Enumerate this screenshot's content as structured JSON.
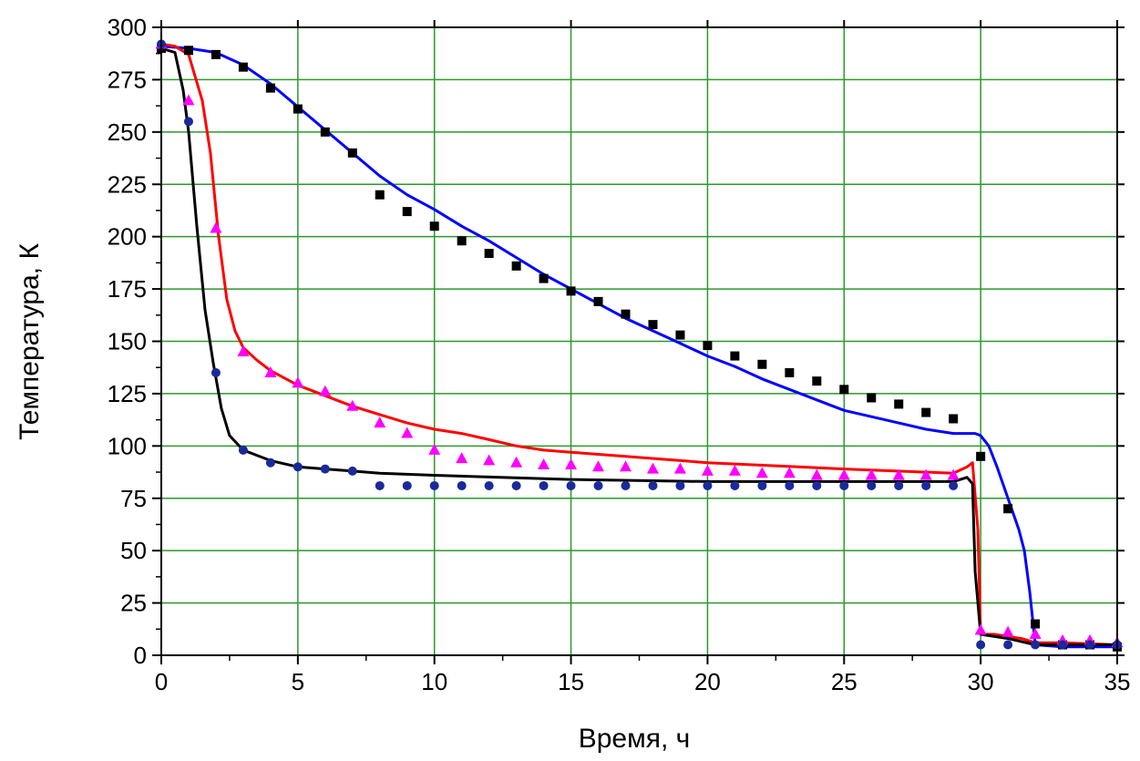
{
  "chart_data": {
    "type": "line",
    "title": "",
    "xlabel": "Время, ч",
    "ylabel": "Температура, К",
    "xlim": [
      0,
      35
    ],
    "ylim": [
      0,
      300
    ],
    "xticks": [
      0,
      5,
      10,
      15,
      20,
      25,
      30,
      35
    ],
    "yticks": [
      0,
      25,
      50,
      75,
      100,
      125,
      150,
      175,
      200,
      225,
      250,
      275,
      300
    ],
    "grid": true,
    "grid_color": "#2a9a2a",
    "legend": "none",
    "series": [
      {
        "kind": "line",
        "color": "#0000ff",
        "points": [
          [
            0,
            291
          ],
          [
            1,
            290
          ],
          [
            2,
            288
          ],
          [
            3,
            282
          ],
          [
            4,
            273
          ],
          [
            5,
            262
          ],
          [
            6,
            251
          ],
          [
            7,
            240
          ],
          [
            8,
            229
          ],
          [
            9,
            220
          ],
          [
            10,
            213
          ],
          [
            11,
            205
          ],
          [
            12,
            198
          ],
          [
            13,
            190
          ],
          [
            14,
            182
          ],
          [
            15,
            175
          ],
          [
            16,
            168
          ],
          [
            17,
            161
          ],
          [
            18,
            155
          ],
          [
            19,
            149
          ],
          [
            20,
            143
          ],
          [
            21,
            138
          ],
          [
            22,
            132
          ],
          [
            23,
            127
          ],
          [
            24,
            122
          ],
          [
            25,
            117
          ],
          [
            26,
            114
          ],
          [
            27,
            111
          ],
          [
            28,
            108
          ],
          [
            29,
            106
          ],
          [
            29.8,
            106
          ],
          [
            30,
            105
          ],
          [
            30.3,
            100
          ],
          [
            30.6,
            90
          ],
          [
            31,
            75
          ],
          [
            31.4,
            60
          ],
          [
            31.6,
            50
          ],
          [
            31.8,
            30
          ],
          [
            32,
            5
          ],
          [
            33,
            4
          ],
          [
            35,
            4
          ]
        ]
      },
      {
        "kind": "line",
        "color": "#ff0000",
        "points": [
          [
            0,
            292
          ],
          [
            0.5,
            291
          ],
          [
            1,
            287
          ],
          [
            1.5,
            265
          ],
          [
            1.8,
            240
          ],
          [
            2.1,
            200
          ],
          [
            2.4,
            170
          ],
          [
            2.7,
            155
          ],
          [
            3,
            147
          ],
          [
            3.5,
            141
          ],
          [
            4,
            136
          ],
          [
            5,
            129
          ],
          [
            6,
            124
          ],
          [
            7,
            119
          ],
          [
            8,
            115
          ],
          [
            9,
            111
          ],
          [
            10,
            108
          ],
          [
            11,
            106
          ],
          [
            12,
            103
          ],
          [
            13,
            100
          ],
          [
            14,
            98
          ],
          [
            15,
            97
          ],
          [
            17,
            95
          ],
          [
            20,
            92
          ],
          [
            25,
            89
          ],
          [
            29,
            87
          ],
          [
            29.5,
            90
          ],
          [
            29.7,
            92
          ],
          [
            29.9,
            60
          ],
          [
            30,
            10
          ],
          [
            30.5,
            10
          ],
          [
            31,
            9
          ],
          [
            31.5,
            8
          ],
          [
            32,
            6
          ],
          [
            33,
            6
          ],
          [
            35,
            5
          ]
        ]
      },
      {
        "kind": "line",
        "color": "#000000",
        "points": [
          [
            0,
            290
          ],
          [
            0.5,
            288
          ],
          [
            0.8,
            270
          ],
          [
            1,
            250
          ],
          [
            1.3,
            205
          ],
          [
            1.6,
            165
          ],
          [
            1.9,
            140
          ],
          [
            2.2,
            118
          ],
          [
            2.5,
            105
          ],
          [
            3,
            98
          ],
          [
            4,
            93
          ],
          [
            5,
            90
          ],
          [
            6,
            89
          ],
          [
            7,
            88
          ],
          [
            8,
            87
          ],
          [
            10,
            86
          ],
          [
            15,
            84
          ],
          [
            20,
            83
          ],
          [
            25,
            83
          ],
          [
            29,
            83
          ],
          [
            29.5,
            85
          ],
          [
            29.7,
            82
          ],
          [
            29.8,
            40
          ],
          [
            30,
            10
          ],
          [
            31,
            8
          ],
          [
            32,
            5
          ],
          [
            35,
            5
          ]
        ]
      },
      {
        "kind": "scatter",
        "marker": "square",
        "color": "#000000",
        "points": [
          [
            0,
            290
          ],
          [
            1,
            289
          ],
          [
            2,
            287
          ],
          [
            3,
            281
          ],
          [
            4,
            271
          ],
          [
            5,
            261
          ],
          [
            6,
            250
          ],
          [
            7,
            240
          ],
          [
            8,
            220
          ],
          [
            9,
            212
          ],
          [
            10,
            205
          ],
          [
            11,
            198
          ],
          [
            12,
            192
          ],
          [
            13,
            186
          ],
          [
            14,
            180
          ],
          [
            15,
            174
          ],
          [
            16,
            169
          ],
          [
            17,
            163
          ],
          [
            18,
            158
          ],
          [
            19,
            153
          ],
          [
            20,
            148
          ],
          [
            21,
            143
          ],
          [
            22,
            139
          ],
          [
            23,
            135
          ],
          [
            24,
            131
          ],
          [
            25,
            127
          ],
          [
            26,
            123
          ],
          [
            27,
            120
          ],
          [
            28,
            116
          ],
          [
            29,
            113
          ],
          [
            30,
            95
          ],
          [
            31,
            70
          ],
          [
            32,
            15
          ],
          [
            33,
            5
          ],
          [
            34,
            5
          ],
          [
            35,
            4
          ]
        ]
      },
      {
        "kind": "scatter",
        "marker": "triangle",
        "color": "#ff00ff",
        "points": [
          [
            0,
            292
          ],
          [
            1,
            265
          ],
          [
            2,
            204
          ],
          [
            3,
            145
          ],
          [
            4,
            135
          ],
          [
            5,
            130
          ],
          [
            6,
            126
          ],
          [
            7,
            119
          ],
          [
            8,
            111
          ],
          [
            9,
            106
          ],
          [
            10,
            98
          ],
          [
            11,
            94
          ],
          [
            12,
            93
          ],
          [
            13,
            92
          ],
          [
            14,
            91
          ],
          [
            15,
            91
          ],
          [
            16,
            90
          ],
          [
            17,
            90
          ],
          [
            18,
            89
          ],
          [
            19,
            89
          ],
          [
            20,
            88
          ],
          [
            21,
            88
          ],
          [
            22,
            87
          ],
          [
            23,
            87
          ],
          [
            24,
            86
          ],
          [
            25,
            86
          ],
          [
            26,
            86
          ],
          [
            27,
            86
          ],
          [
            28,
            86
          ],
          [
            29,
            86
          ],
          [
            30,
            12
          ],
          [
            31,
            11
          ],
          [
            32,
            10
          ],
          [
            33,
            7
          ],
          [
            34,
            7
          ],
          [
            35,
            6
          ]
        ]
      },
      {
        "kind": "scatter",
        "marker": "circle",
        "color": "#1a2a9a",
        "points": [
          [
            0,
            292
          ],
          [
            1,
            255
          ],
          [
            2,
            135
          ],
          [
            3,
            98
          ],
          [
            4,
            92
          ],
          [
            5,
            90
          ],
          [
            6,
            89
          ],
          [
            7,
            88
          ],
          [
            8,
            81
          ],
          [
            9,
            81
          ],
          [
            10,
            81
          ],
          [
            11,
            81
          ],
          [
            12,
            81
          ],
          [
            13,
            81
          ],
          [
            14,
            81
          ],
          [
            15,
            81
          ],
          [
            16,
            81
          ],
          [
            17,
            81
          ],
          [
            18,
            81
          ],
          [
            19,
            81
          ],
          [
            20,
            81
          ],
          [
            21,
            81
          ],
          [
            22,
            81
          ],
          [
            23,
            81
          ],
          [
            24,
            81
          ],
          [
            25,
            81
          ],
          [
            26,
            81
          ],
          [
            27,
            81
          ],
          [
            28,
            81
          ],
          [
            29,
            81
          ],
          [
            30,
            5
          ],
          [
            31,
            5
          ],
          [
            32,
            5
          ],
          [
            33,
            5
          ],
          [
            34,
            5
          ],
          [
            35,
            5
          ]
        ]
      }
    ]
  }
}
